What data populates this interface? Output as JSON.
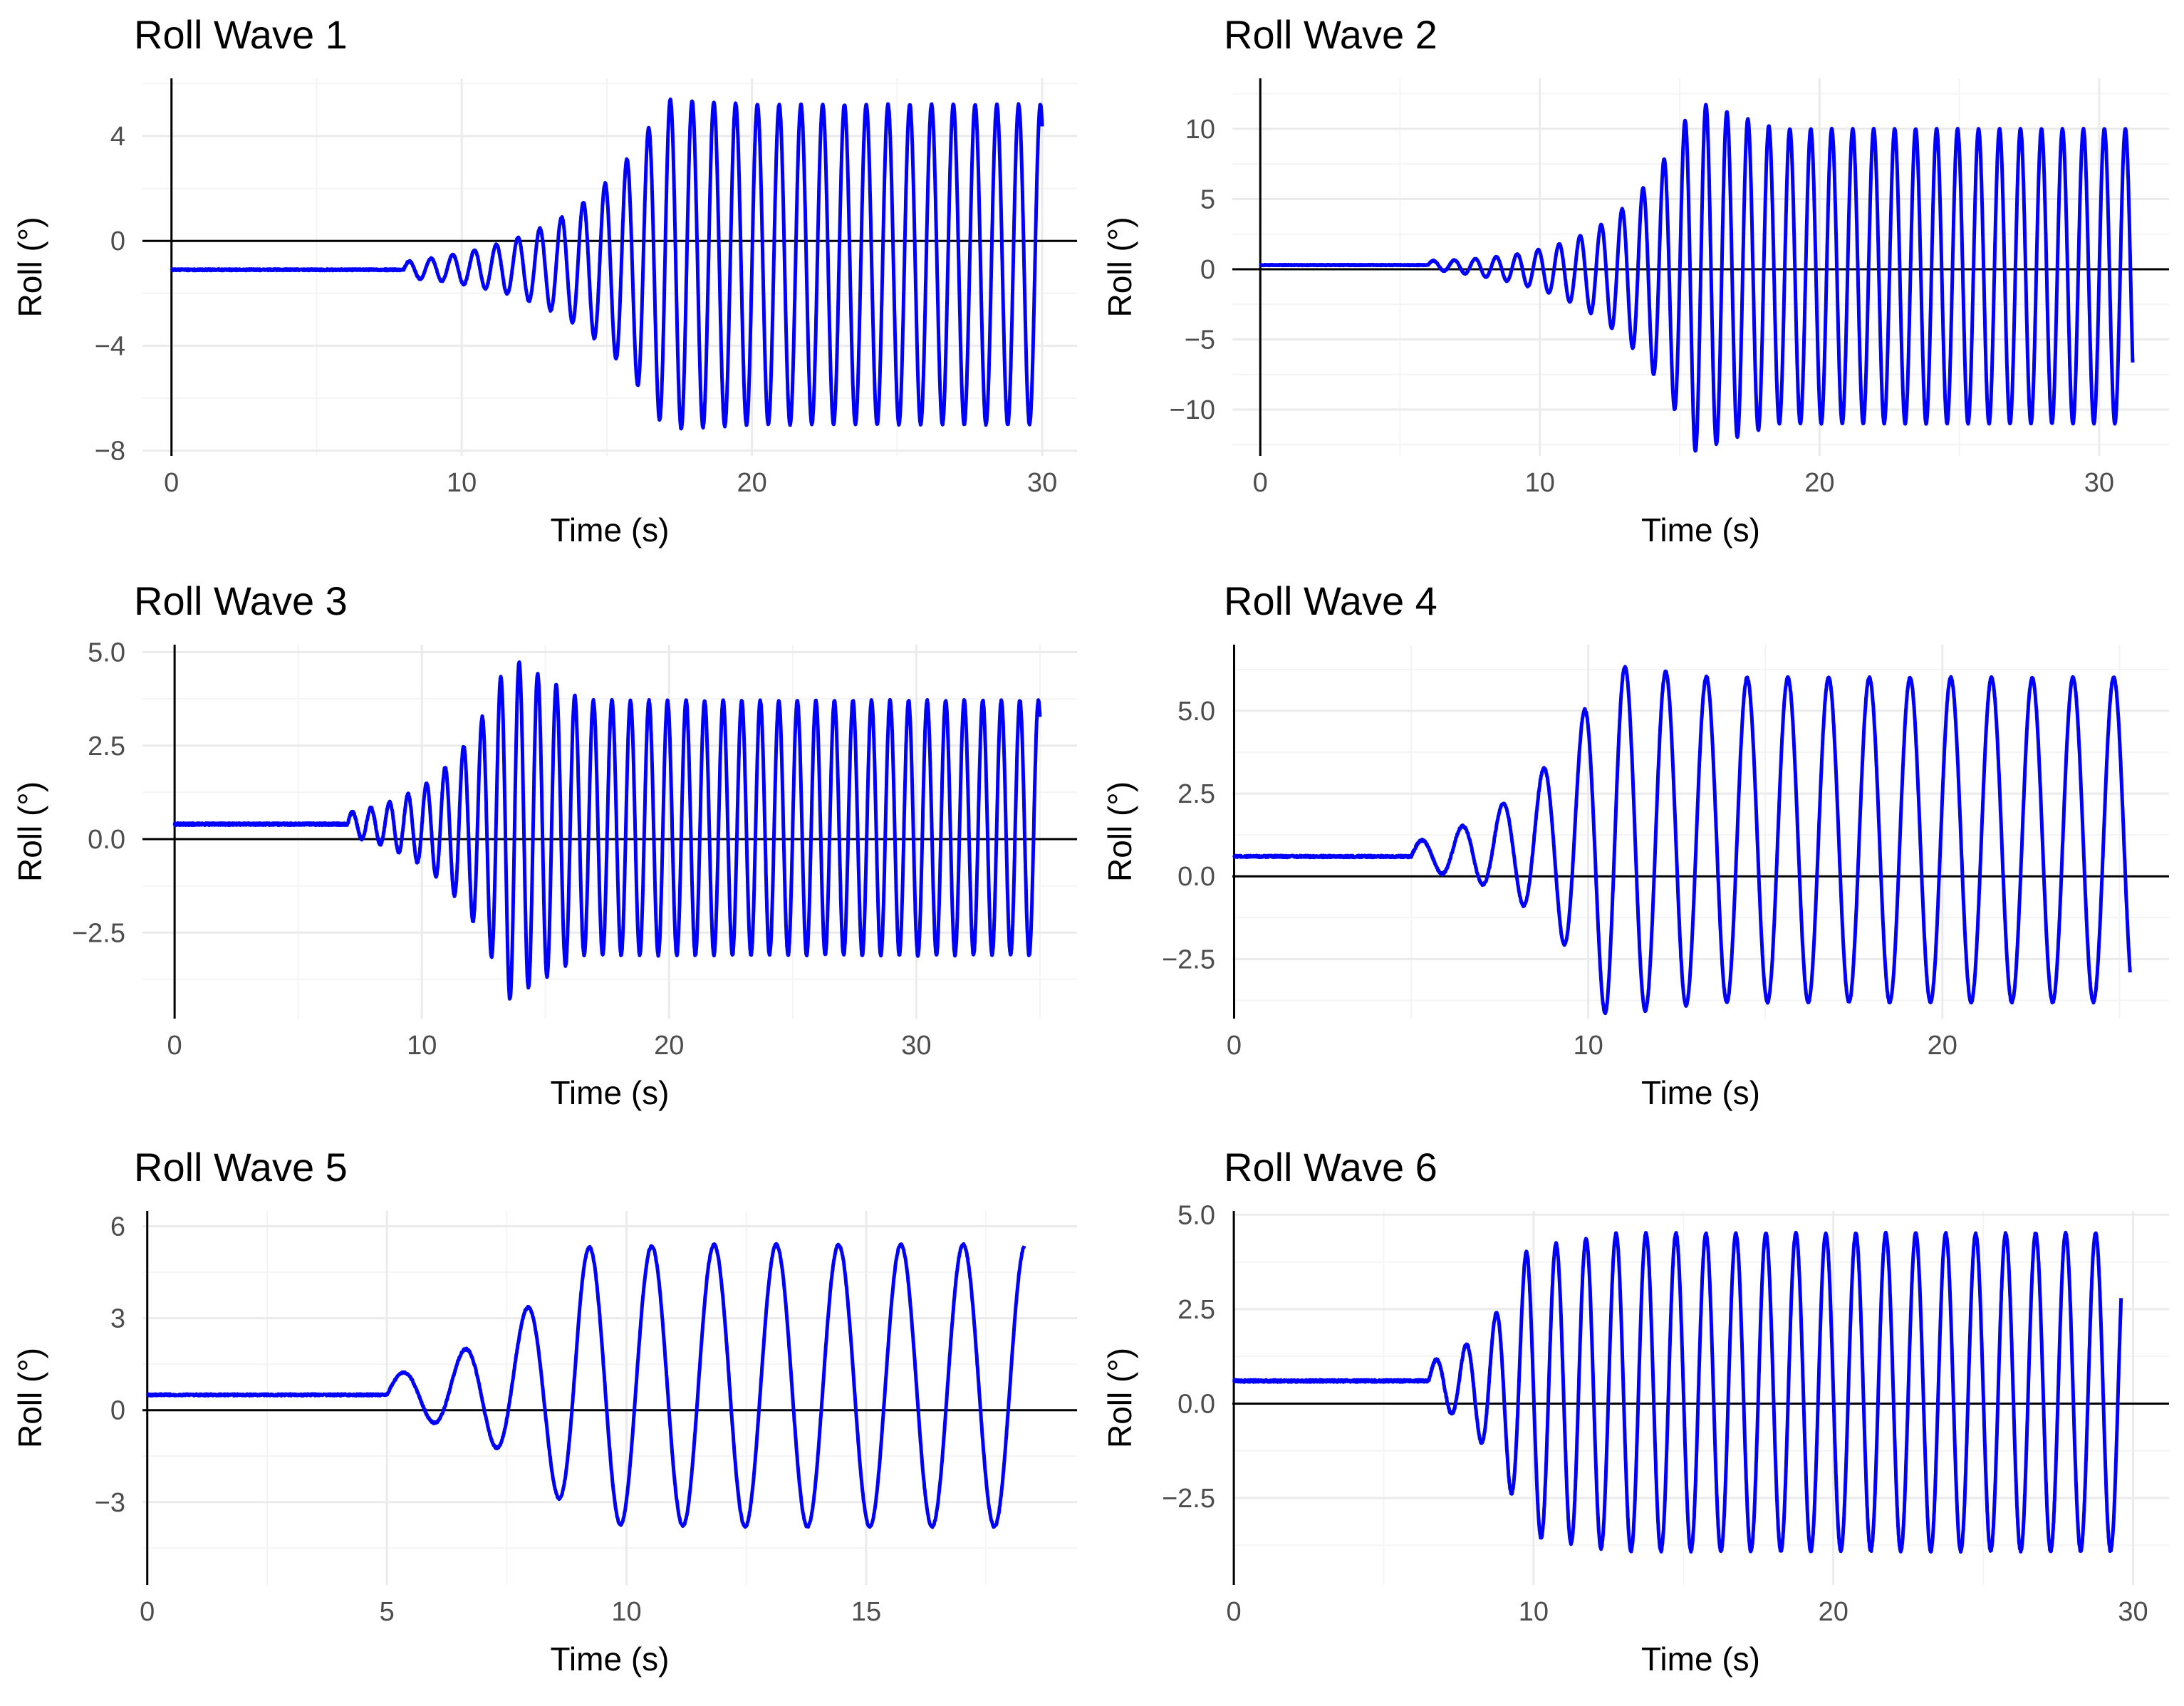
{
  "series_color": "#0000ff",
  "axis_color": "#000000",
  "chart_data": [
    {
      "type": "line",
      "title": "Roll Wave 1",
      "xlabel": "Time (s)",
      "ylabel": "Roll (°)",
      "xlim": [
        -1,
        31.2
      ],
      "ylim": [
        -8.2,
        6.2
      ],
      "xticks": [
        0,
        10,
        20,
        30
      ],
      "xtick_labels": [
        "0",
        "10",
        "20",
        "30"
      ],
      "yticks": [
        -8,
        -4,
        0,
        4
      ],
      "ytick_labels": [
        "−8",
        "−4",
        "0",
        "4"
      ],
      "x_end": 30,
      "signal": {
        "offset": -1.1,
        "onset": 8,
        "growth_end": 17,
        "amp_start": 0.3,
        "amp_end": 6.3,
        "settled_center": -0.9,
        "period": 0.75,
        "settle_amp": 6.1
      }
    },
    {
      "type": "line",
      "title": "Roll Wave 2",
      "xlabel": "Time (s)",
      "ylabel": "Roll (°)",
      "xlim": [
        -1,
        32.5
      ],
      "ylim": [
        -13.3,
        13.6
      ],
      "xticks": [
        0,
        10,
        20,
        30
      ],
      "xtick_labels": [
        "0",
        "10",
        "20",
        "30"
      ],
      "yticks": [
        -10,
        -5,
        0,
        5,
        10
      ],
      "ytick_labels": [
        "−10",
        "−5",
        "0",
        "5",
        "10"
      ],
      "x_end": 31.2,
      "signal": {
        "offset": 0.3,
        "onset": 6,
        "growth_end": 15.5,
        "amp_start": 0.3,
        "amp_end": 12.5,
        "settled_center": -0.5,
        "period": 0.75,
        "settle_amp": 10.5
      }
    },
    {
      "type": "line",
      "title": "Roll Wave 3",
      "xlabel": "Time (s)",
      "ylabel": "Roll (°)",
      "xlim": [
        -1.3,
        36.5
      ],
      "ylim": [
        -4.8,
        5.2
      ],
      "xticks": [
        0,
        10,
        20,
        30
      ],
      "xtick_labels": [
        "0",
        "10",
        "20",
        "30"
      ],
      "yticks": [
        -2.5,
        0.0,
        2.5,
        5.0
      ],
      "ytick_labels": [
        "−2.5",
        "0.0",
        "2.5",
        "5.0"
      ],
      "x_end": 35,
      "signal": {
        "offset": 0.4,
        "onset": 7,
        "growth_end": 13.5,
        "amp_start": 0.3,
        "amp_end": 4.6,
        "settled_center": 0.3,
        "period": 0.75,
        "settle_amp": 3.4
      }
    },
    {
      "type": "line",
      "title": "Roll Wave 4",
      "xlabel": "Time (s)",
      "ylabel": "Roll (°)",
      "xlim": [
        -0.05,
        26.4
      ],
      "ylim": [
        -4.3,
        7.0
      ],
      "xticks": [
        0,
        10,
        20
      ],
      "xtick_labels": [
        "0",
        "10",
        "20"
      ],
      "yticks": [
        -2.5,
        0.0,
        2.5,
        5.0
      ],
      "ytick_labels": [
        "−2.5",
        "0.0",
        "2.5",
        "5.0"
      ],
      "x_end": 25.3,
      "signal": {
        "offset": 0.6,
        "onset": 5,
        "growth_end": 10.5,
        "amp_start": 0.4,
        "amp_end": 5.3,
        "settled_center": 1.1,
        "period": 1.15,
        "settle_amp": 4.9
      }
    },
    {
      "type": "line",
      "title": "Roll Wave 5",
      "xlabel": "Time (s)",
      "ylabel": "Roll (°)",
      "xlim": [
        -0.1,
        19.4
      ],
      "ylim": [
        -5.7,
        6.5
      ],
      "xticks": [
        0,
        5,
        10,
        15
      ],
      "xtick_labels": [
        "0",
        "5",
        "10",
        "15"
      ],
      "yticks": [
        -3,
        0,
        3,
        6
      ],
      "ytick_labels": [
        "−3",
        "0",
        "3",
        "6"
      ],
      "x_end": 18.3,
      "signal": {
        "offset": 0.5,
        "onset": 5,
        "growth_end": 9,
        "amp_start": 0.6,
        "amp_end": 4.5,
        "settled_center": 0.8,
        "period": 1.3,
        "settle_amp": 4.6
      }
    },
    {
      "type": "line",
      "title": "Roll Wave 6",
      "xlabel": "Time (s)",
      "ylabel": "Roll (°)",
      "xlim": [
        -0.05,
        31.2
      ],
      "ylim": [
        -4.8,
        5.1
      ],
      "xticks": [
        0,
        10,
        20,
        30
      ],
      "xtick_labels": [
        "0",
        "10",
        "20",
        "30"
      ],
      "yticks": [
        -2.5,
        0.0,
        2.5,
        5.0
      ],
      "ytick_labels": [
        "−2.5",
        "0.0",
        "2.5",
        "5.0"
      ],
      "x_end": 29.6,
      "signal": {
        "offset": 0.6,
        "onset": 6.5,
        "growth_end": 9.8,
        "amp_start": 0.5,
        "amp_end": 3.8,
        "settled_center": 0.3,
        "period": 1.0,
        "settle_amp": 4.2
      }
    }
  ]
}
